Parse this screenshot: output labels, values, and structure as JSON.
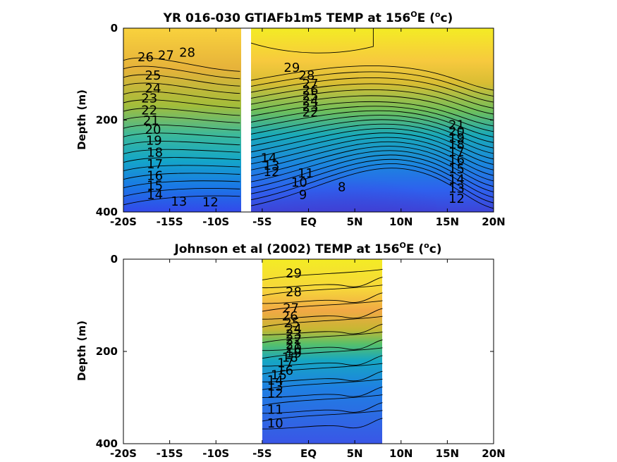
{
  "chart_data": [
    {
      "type": "heatmap",
      "title": "YR 016-030 GTIAFb1m5 TEMP at 156",
      "title_sup": "O",
      "title_tail": "E (",
      "title_unit_sup": "o",
      "title_unit": "c)",
      "ylabel": "Depth (m)",
      "xlabel": "",
      "xlim": [
        -20,
        20
      ],
      "ylim": [
        0,
        400
      ],
      "y_reversed": true,
      "x_ticks": [
        -20,
        -15,
        -10,
        -5,
        0,
        5,
        10,
        15,
        20
      ],
      "x_tick_labels": [
        "-20S",
        "-15S",
        "-10S",
        "-5S",
        "EQ",
        "5N",
        "10N",
        "15N",
        "20N"
      ],
      "y_ticks": [
        0,
        200,
        400
      ],
      "y_tick_labels": [
        "0",
        "200",
        "400"
      ],
      "data_gap_lat": [
        -7.4,
        -6.6
      ],
      "colormap": "parula",
      "contour_interval": 1,
      "contour_labels": [
        {
          "text": "26",
          "lat": -17.6,
          "depth": 72
        },
        {
          "text": "27",
          "lat": -15.4,
          "depth": 68
        },
        {
          "text": "28",
          "lat": -13.1,
          "depth": 62
        },
        {
          "text": "25",
          "lat": -16.8,
          "depth": 112
        },
        {
          "text": "24",
          "lat": -16.8,
          "depth": 140
        },
        {
          "text": "23",
          "lat": -17.2,
          "depth": 162
        },
        {
          "text": "22",
          "lat": -17.2,
          "depth": 188
        },
        {
          "text": "21",
          "lat": -17.0,
          "depth": 210
        },
        {
          "text": "20",
          "lat": -16.8,
          "depth": 230
        },
        {
          "text": "19",
          "lat": -16.7,
          "depth": 254
        },
        {
          "text": "18",
          "lat": -16.6,
          "depth": 280
        },
        {
          "text": "17",
          "lat": -16.6,
          "depth": 305
        },
        {
          "text": "16",
          "lat": -16.6,
          "depth": 330
        },
        {
          "text": "15",
          "lat": -16.6,
          "depth": 352
        },
        {
          "text": "14",
          "lat": -16.6,
          "depth": 372
        },
        {
          "text": "13",
          "lat": -14.0,
          "depth": 386
        },
        {
          "text": "12",
          "lat": -10.6,
          "depth": 388
        },
        {
          "text": "29",
          "lat": -1.8,
          "depth": 95
        },
        {
          "text": "28",
          "lat": -0.2,
          "depth": 112
        },
        {
          "text": "27",
          "lat": 0.2,
          "depth": 130
        },
        {
          "text": "26",
          "lat": 0.2,
          "depth": 144
        },
        {
          "text": "25",
          "lat": 0.2,
          "depth": 156
        },
        {
          "text": "24",
          "lat": 0.2,
          "depth": 168
        },
        {
          "text": "23",
          "lat": 0.2,
          "depth": 180
        },
        {
          "text": "22",
          "lat": 0.2,
          "depth": 192
        },
        {
          "text": "14",
          "lat": -4.3,
          "depth": 292
        },
        {
          "text": "13",
          "lat": -4.0,
          "depth": 308
        },
        {
          "text": "12",
          "lat": -4.0,
          "depth": 322
        },
        {
          "text": "11",
          "lat": -0.3,
          "depth": 325
        },
        {
          "text": "10",
          "lat": -1.0,
          "depth": 345
        },
        {
          "text": "9",
          "lat": -0.6,
          "depth": 372
        },
        {
          "text": "8",
          "lat": 3.6,
          "depth": 355
        },
        {
          "text": "21",
          "lat": 16.0,
          "depth": 220
        },
        {
          "text": "20",
          "lat": 16.0,
          "depth": 234
        },
        {
          "text": "19",
          "lat": 16.0,
          "depth": 248
        },
        {
          "text": "18",
          "lat": 16.0,
          "depth": 262
        },
        {
          "text": "17",
          "lat": 16.0,
          "depth": 278
        },
        {
          "text": "16",
          "lat": 16.0,
          "depth": 296
        },
        {
          "text": "15",
          "lat": 16.0,
          "depth": 316
        },
        {
          "text": "14",
          "lat": 16.0,
          "depth": 338
        },
        {
          "text": "13",
          "lat": 16.0,
          "depth": 358
        },
        {
          "text": "12",
          "lat": 16.0,
          "depth": 380
        }
      ]
    },
    {
      "type": "heatmap",
      "title": "Johnson et al (2002) TEMP at 156",
      "title_sup": "O",
      "title_tail": "E (",
      "title_unit_sup": "o",
      "title_unit": "c)",
      "ylabel": "Depth (m)",
      "xlabel": "",
      "xlim": [
        -20,
        20
      ],
      "ylim": [
        0,
        400
      ],
      "y_reversed": true,
      "x_ticks": [
        -20,
        -15,
        -10,
        -5,
        0,
        5,
        10,
        15,
        20
      ],
      "x_tick_labels": [
        "-20S",
        "-15S",
        "-10S",
        "-5S",
        "EQ",
        "5N",
        "10N",
        "15N",
        "20N"
      ],
      "y_ticks": [
        0,
        200,
        400
      ],
      "y_tick_labels": [
        "0",
        "200",
        "400"
      ],
      "data_lat_range": [
        -5,
        8
      ],
      "colormap": "parula",
      "contour_interval": 1,
      "contour_labels": [
        {
          "text": "29",
          "lat": -1.6,
          "depth": 40
        },
        {
          "text": "28",
          "lat": -1.6,
          "depth": 80
        },
        {
          "text": "27",
          "lat": -1.9,
          "depth": 115
        },
        {
          "text": "26",
          "lat": -2.0,
          "depth": 133
        },
        {
          "text": "25",
          "lat": -1.8,
          "depth": 147
        },
        {
          "text": "24",
          "lat": -1.6,
          "depth": 160
        },
        {
          "text": "23",
          "lat": -1.6,
          "depth": 172
        },
        {
          "text": "22",
          "lat": -1.6,
          "depth": 183
        },
        {
          "text": "21",
          "lat": -1.6,
          "depth": 194
        },
        {
          "text": "20",
          "lat": -1.6,
          "depth": 203
        },
        {
          "text": "19",
          "lat": -1.6,
          "depth": 213
        },
        {
          "text": "18",
          "lat": -2.0,
          "depth": 222
        },
        {
          "text": "17",
          "lat": -2.5,
          "depth": 234
        },
        {
          "text": "16",
          "lat": -2.5,
          "depth": 250
        },
        {
          "text": "15",
          "lat": -3.2,
          "depth": 260
        },
        {
          "text": "14",
          "lat": -3.6,
          "depth": 272
        },
        {
          "text": "13",
          "lat": -3.6,
          "depth": 285
        },
        {
          "text": "12",
          "lat": -3.6,
          "depth": 300
        },
        {
          "text": "11",
          "lat": -3.6,
          "depth": 335
        },
        {
          "text": "10",
          "lat": -3.6,
          "depth": 365
        }
      ]
    }
  ]
}
